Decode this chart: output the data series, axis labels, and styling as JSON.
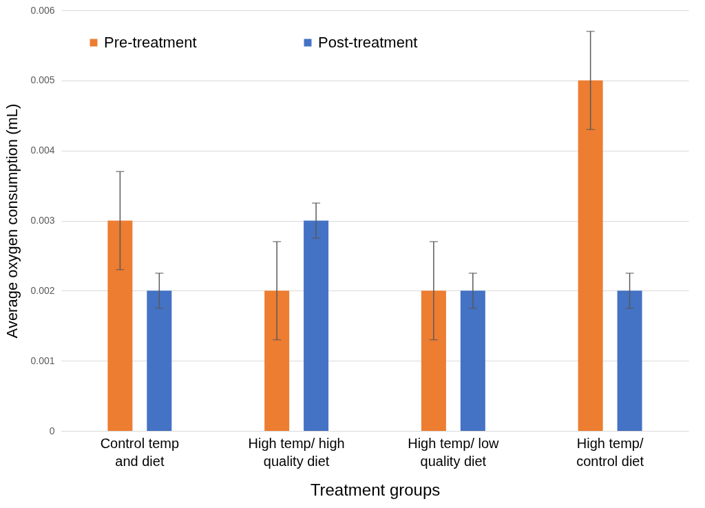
{
  "chart_data": {
    "type": "bar",
    "xlabel": "Treatment groups",
    "ylabel": "Average oxygen consumption (mL)",
    "categories": [
      "Control temp and diet",
      "High temp/ high quality diet",
      "High temp/ low quality diet",
      "High temp/ control diet"
    ],
    "series": [
      {
        "name": "Pre-treatment",
        "color": "#ed7d31",
        "values": [
          0.003,
          0.002,
          0.002,
          0.005
        ],
        "errors": [
          0.0007,
          0.0007,
          0.0007,
          0.0007
        ]
      },
      {
        "name": "Post-treatment",
        "color": "#4472c4",
        "values": [
          0.002,
          0.003,
          0.002,
          0.002
        ],
        "errors": [
          0.00025,
          0.00025,
          0.00025,
          0.00025
        ]
      }
    ],
    "ylim": [
      0,
      0.006
    ],
    "yticks": [
      0,
      0.001,
      0.002,
      0.003,
      0.004,
      0.005,
      0.006
    ],
    "grid": "y",
    "legend": "top left"
  }
}
